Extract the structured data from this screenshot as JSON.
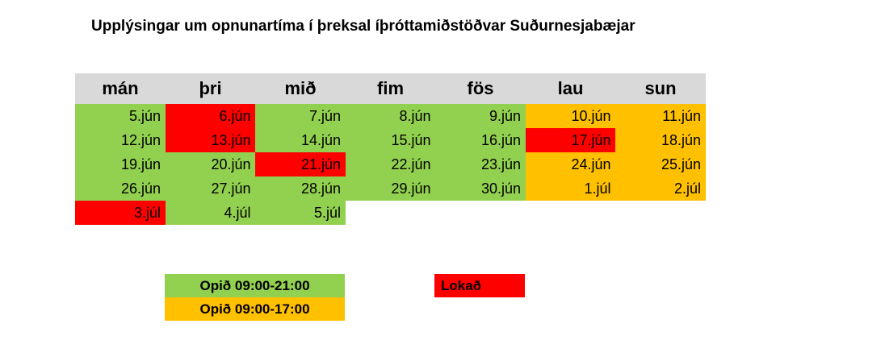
{
  "title": "Upplýsingar um opnunartíma í þreksal íþróttamiðstöðvar Suðurnesjabæjar",
  "colors": {
    "open": "#92d050",
    "short": "#ffc000",
    "closed": "#ff0000"
  },
  "table": {
    "header": [
      "mán",
      "þri",
      "mið",
      "fim",
      "fös",
      "lau",
      "sun"
    ],
    "rows": [
      [
        {
          "text": "5.jún",
          "status": "open"
        },
        {
          "text": "6.jún",
          "status": "closed"
        },
        {
          "text": "7.jún",
          "status": "open"
        },
        {
          "text": "8.jún",
          "status": "open"
        },
        {
          "text": "9.jún",
          "status": "open"
        },
        {
          "text": "10.jún",
          "status": "short"
        },
        {
          "text": "11.jún",
          "status": "short"
        }
      ],
      [
        {
          "text": "12.jún",
          "status": "open"
        },
        {
          "text": "13.jún",
          "status": "closed"
        },
        {
          "text": "14.jún",
          "status": "open"
        },
        {
          "text": "15.jún",
          "status": "open"
        },
        {
          "text": "16.jún",
          "status": "open"
        },
        {
          "text": "17.jún",
          "status": "closed"
        },
        {
          "text": "18.jún",
          "status": "short"
        }
      ],
      [
        {
          "text": "19.jún",
          "status": "open"
        },
        {
          "text": "20.jún",
          "status": "open"
        },
        {
          "text": "21.jún",
          "status": "closed"
        },
        {
          "text": "22.jún",
          "status": "open"
        },
        {
          "text": "23.jún",
          "status": "open"
        },
        {
          "text": "24.jún",
          "status": "short"
        },
        {
          "text": "25.jún",
          "status": "short"
        }
      ],
      [
        {
          "text": "26.jún",
          "status": "open"
        },
        {
          "text": "27.jún",
          "status": "open"
        },
        {
          "text": "28.jún",
          "status": "open"
        },
        {
          "text": "29.jún",
          "status": "open"
        },
        {
          "text": "30.jún",
          "status": "open"
        },
        {
          "text": "1.júl",
          "status": "short"
        },
        {
          "text": "2.júl",
          "status": "short"
        }
      ],
      [
        {
          "text": "3.júl",
          "status": "closed"
        },
        {
          "text": "4.júl",
          "status": "open"
        },
        {
          "text": "5.júl",
          "status": "open"
        }
      ]
    ]
  },
  "legend": [
    {
      "text": "Opið 09:00-21:00",
      "status": "open"
    },
    {
      "text": "Opið 09:00-17:00",
      "status": "short"
    },
    {
      "text": "Lokað",
      "status": "closed"
    }
  ]
}
